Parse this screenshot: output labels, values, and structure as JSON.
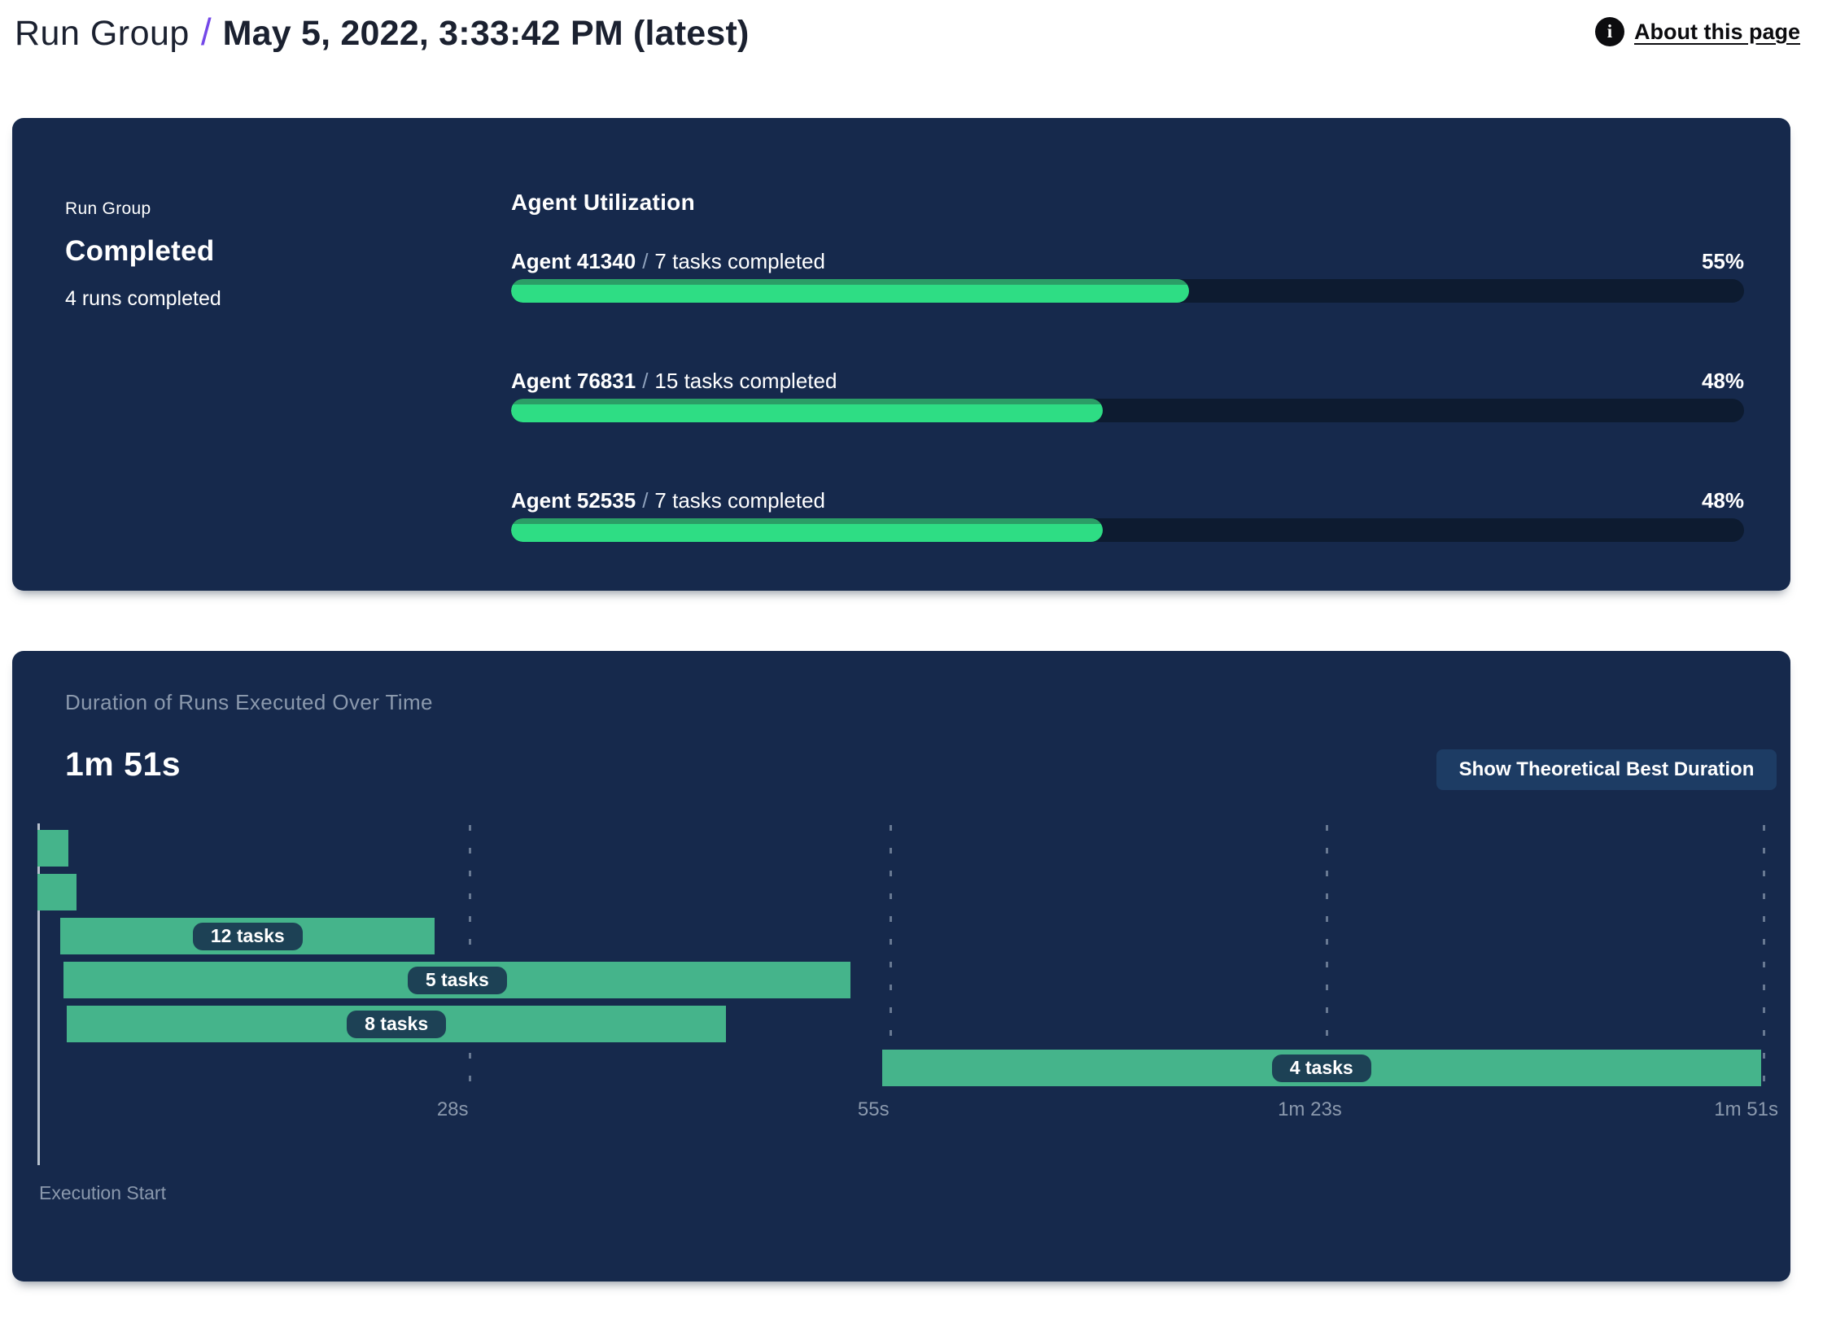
{
  "header": {
    "breadcrumb_root": "Run Group",
    "separator": "/",
    "current_run": "May 5, 2022, 3:33:42 PM (latest)",
    "about_link_label": "About this page",
    "info_icon_glyph": "i"
  },
  "summary": {
    "label": "Run Group",
    "status": "Completed",
    "runs_completed": "4 runs completed"
  },
  "agent_utilization": {
    "title": "Agent Utilization",
    "separator": "/",
    "agents": [
      {
        "name": "Agent 41340",
        "tasks": "7 tasks completed",
        "percent": 55,
        "percent_label": "55%"
      },
      {
        "name": "Agent 76831",
        "tasks": "15 tasks completed",
        "percent": 48,
        "percent_label": "48%"
      },
      {
        "name": "Agent 52535",
        "tasks": "7 tasks completed",
        "percent": 48,
        "percent_label": "48%"
      }
    ]
  },
  "duration_panel": {
    "title": "Duration of Runs Executed Over Time",
    "total_duration": "1m 51s",
    "button_label": "Show Theoretical Best Duration",
    "x_axis_label": "Execution Start"
  },
  "chart_data": {
    "type": "gantt",
    "title": "Duration of Runs Executed Over Time",
    "total_duration_label": "1m 51s",
    "x_unit": "seconds",
    "xlim": [
      0,
      111
    ],
    "grid": "dashed-vertical",
    "x_ticks": [
      {
        "label": "28s",
        "seconds": 28
      },
      {
        "label": "55s",
        "seconds": 55
      },
      {
        "label": "1m 23s",
        "seconds": 83
      },
      {
        "label": "1m 51s",
        "seconds": 111
      }
    ],
    "runs": [
      {
        "row": 0,
        "start_s": 0.3,
        "end_s": 2.3,
        "label": ""
      },
      {
        "row": 1,
        "start_s": 0.3,
        "end_s": 2.8,
        "label": ""
      },
      {
        "row": 2,
        "start_s": 1.8,
        "end_s": 25.8,
        "label": "12 tasks"
      },
      {
        "row": 3,
        "start_s": 2.0,
        "end_s": 52.5,
        "label": "5 tasks"
      },
      {
        "row": 4,
        "start_s": 2.2,
        "end_s": 44.5,
        "label": "8 tasks"
      },
      {
        "row": 5,
        "start_s": 54.5,
        "end_s": 110.9,
        "label": "4 tasks"
      }
    ],
    "x_axis_label": "Execution Start"
  },
  "colors": {
    "panel_background": "#16294c",
    "progress_fill_green": "#2edd84",
    "progress_fill_shade": "#2b9e66",
    "progress_track": "#0d1b30",
    "gantt_bar_green": "#45b48b",
    "gantt_pill_navy": "#1d4155",
    "button_navy": "#1d3c64",
    "breadcrumb_slash_purple": "#7448e8",
    "muted_text": "#8b99ad"
  }
}
